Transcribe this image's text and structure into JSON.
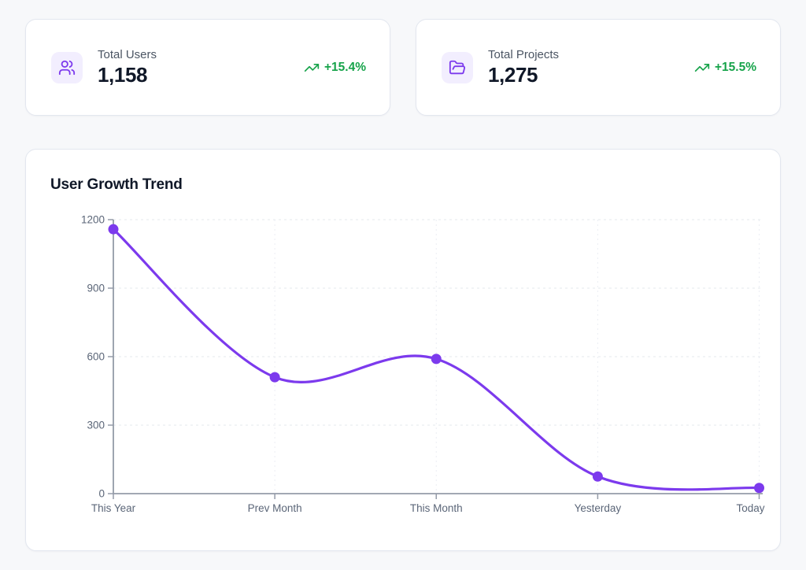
{
  "cards": [
    {
      "label": "Total Users",
      "value": "1,158",
      "change": "+15.4%",
      "icon": "users"
    },
    {
      "label": "Total Projects",
      "value": "1,275",
      "change": "+15.5%",
      "icon": "folder-open"
    }
  ],
  "chart_data": {
    "type": "line",
    "title": "User Growth Trend",
    "categories": [
      "This Year",
      "Prev Month",
      "This Month",
      "Yesterday",
      "Today"
    ],
    "values": [
      1158,
      510,
      590,
      75,
      25
    ],
    "xlabel": "",
    "ylabel": "",
    "ylim": [
      0,
      1200
    ],
    "yticks": [
      0,
      300,
      600,
      900,
      1200
    ],
    "grid": true,
    "legend": false,
    "line_color": "#7c3aed",
    "point_color": "#7c3aed"
  },
  "colors": {
    "accent": "#7c3aed",
    "accent_bg": "#f2eefe",
    "positive": "#16a34a"
  }
}
